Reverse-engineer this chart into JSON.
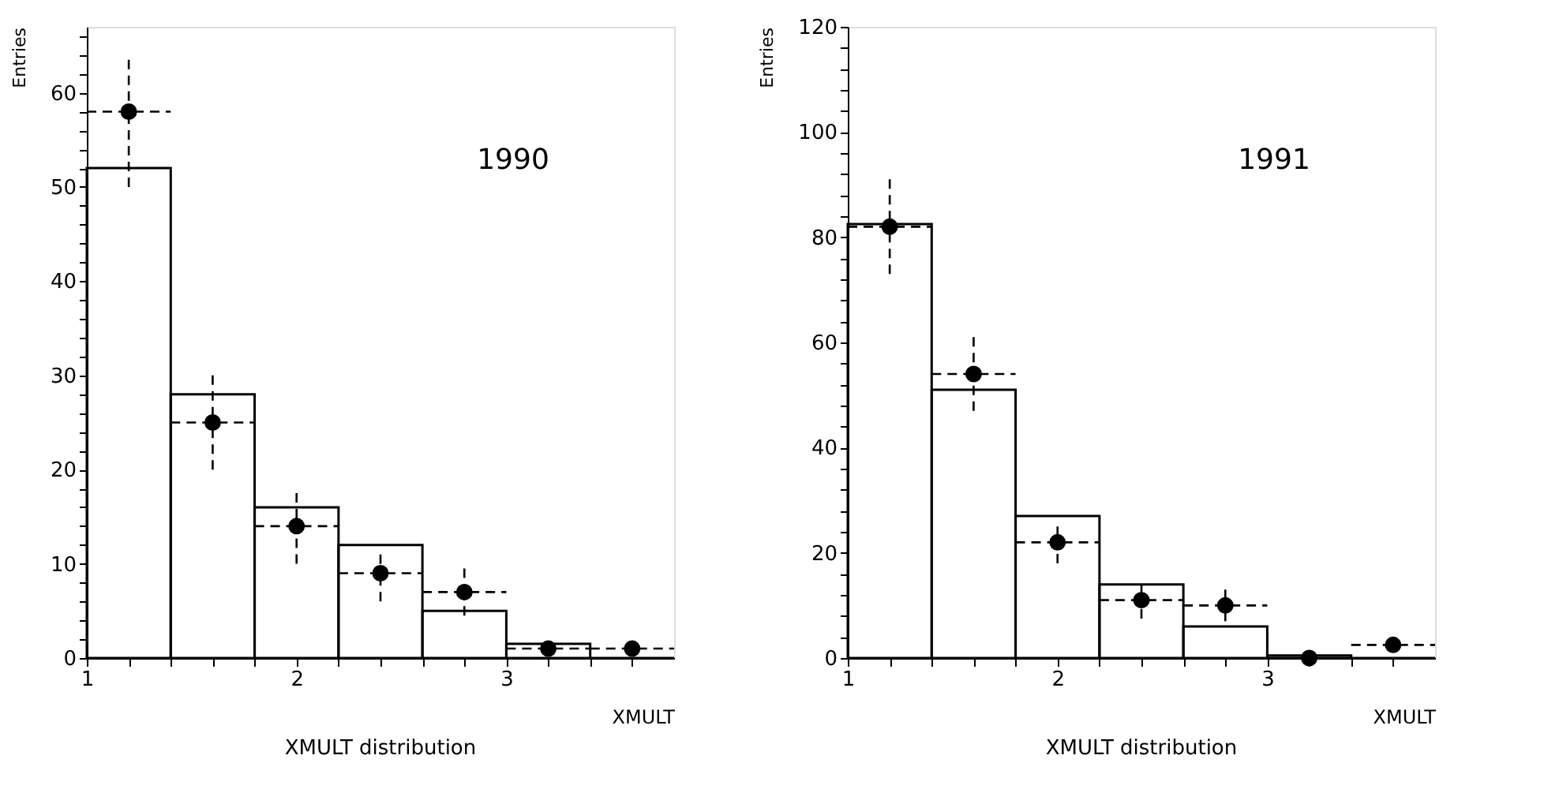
{
  "chart_data": [
    {
      "type": "histogram",
      "title": "XMULT distribution",
      "xlabel": "XMULT",
      "ylabel": "Entries",
      "annotations": [
        "1990"
      ],
      "bins": [
        1.0,
        1.4,
        1.8,
        2.2,
        2.6,
        3.0,
        3.4,
        3.8
      ],
      "values": [
        52,
        28,
        16,
        12,
        5,
        1.5,
        0
      ],
      "color": "#000000",
      "series": [
        {
          "type": "scatter",
          "color": "#000000",
          "marker": "circle",
          "x": [
            1.2,
            1.6,
            2.0,
            2.4,
            2.8,
            3.2,
            3.6
          ],
          "values": [
            58,
            25,
            14,
            9,
            7,
            1,
            1
          ],
          "errors": [
            [
              50,
              63.5
            ],
            [
              20,
              30
            ],
            [
              10,
              17.5
            ],
            [
              6,
              11
            ],
            [
              4.5,
              9.5
            ],
            null,
            null
          ],
          "xerrors": [
            0.2,
            0.2,
            0.2,
            0.2,
            0.2,
            0.2,
            0.2
          ]
        }
      ],
      "xlim": [
        1,
        3.8
      ],
      "ylim": [
        0,
        67
      ],
      "xticks": [
        1,
        {
          "value": 1.2,
          "label": null
        },
        {
          "value": 1.4,
          "label": null
        },
        {
          "value": 1.6,
          "label": null
        },
        {
          "value": 1.8,
          "label": null
        },
        2,
        {
          "value": 2.2,
          "label": null
        },
        {
          "value": 2.4,
          "label": null
        },
        {
          "value": 2.6,
          "label": null
        },
        {
          "value": 2.8,
          "label": null
        },
        3,
        {
          "value": 3.2,
          "label": null
        },
        {
          "value": 3.4,
          "label": null
        },
        {
          "value": 3.6,
          "label": null
        }
      ],
      "yticks": [
        0,
        {
          "value": 2,
          "label": null
        },
        {
          "value": 4,
          "label": null
        },
        {
          "value": 6,
          "label": null
        },
        {
          "value": 8,
          "label": null
        },
        10,
        {
          "value": 12,
          "label": null
        },
        {
          "value": 14,
          "label": null
        },
        {
          "value": 16,
          "label": null
        },
        {
          "value": 18,
          "label": null
        },
        20,
        {
          "value": 22,
          "label": null
        },
        {
          "value": 24,
          "label": null
        },
        {
          "value": 26,
          "label": null
        },
        {
          "value": 28,
          "label": null
        },
        30,
        {
          "value": 32,
          "label": null
        },
        {
          "value": 34,
          "label": null
        },
        {
          "value": 36,
          "label": null
        },
        {
          "value": 38,
          "label": null
        },
        40,
        {
          "value": 42,
          "label": null
        },
        {
          "value": 44,
          "label": null
        },
        {
          "value": 46,
          "label": null
        },
        {
          "value": 48,
          "label": null
        },
        50,
        {
          "value": 52,
          "label": null
        },
        {
          "value": 54,
          "label": null
        },
        {
          "value": 56,
          "label": null
        },
        {
          "value": 58,
          "label": null
        },
        60,
        {
          "value": 62,
          "label": null
        },
        {
          "value": 64,
          "label": null
        },
        {
          "value": 66,
          "label": null
        }
      ],
      "grid": false
    },
    {
      "type": "histogram",
      "title": "XMULT distribution",
      "xlabel": "XMULT",
      "ylabel": "Entries",
      "annotations": [
        "1991"
      ],
      "bins": [
        1.0,
        1.4,
        1.8,
        2.2,
        2.6,
        3.0,
        3.4,
        3.8
      ],
      "values": [
        82.5,
        51,
        27,
        14,
        6,
        0.5,
        0
      ],
      "color": "#000000",
      "series": [
        {
          "type": "scatter",
          "color": "#000000",
          "marker": "circle",
          "x": [
            1.2,
            1.6,
            2.0,
            2.4,
            2.8,
            3.2,
            3.6
          ],
          "values": [
            82,
            54,
            22,
            11,
            10,
            0,
            2.5
          ],
          "errors": [
            [
              73,
              91
            ],
            [
              47,
              61
            ],
            [
              18,
              25
            ],
            [
              7.5,
              14
            ],
            [
              7,
              13
            ],
            null,
            null
          ],
          "xerrors": [
            0.2,
            0.2,
            0.2,
            0.2,
            0.2,
            null,
            0.2
          ]
        }
      ],
      "xlim": [
        1,
        3.8
      ],
      "ylim": [
        0,
        120
      ],
      "xticks": [
        1,
        {
          "value": 1.2,
          "label": null
        },
        {
          "value": 1.4,
          "label": null
        },
        {
          "value": 1.6,
          "label": null
        },
        {
          "value": 1.8,
          "label": null
        },
        2,
        {
          "value": 2.2,
          "label": null
        },
        {
          "value": 2.4,
          "label": null
        },
        {
          "value": 2.6,
          "label": null
        },
        {
          "value": 2.8,
          "label": null
        },
        3,
        {
          "value": 3.2,
          "label": null
        },
        {
          "value": 3.4,
          "label": null
        },
        {
          "value": 3.6,
          "label": null
        }
      ],
      "yticks": [
        0,
        {
          "value": 4,
          "label": null
        },
        {
          "value": 8,
          "label": null
        },
        {
          "value": 12,
          "label": null
        },
        {
          "value": 16,
          "label": null
        },
        20,
        {
          "value": 24,
          "label": null
        },
        {
          "value": 28,
          "label": null
        },
        {
          "value": 32,
          "label": null
        },
        {
          "value": 36,
          "label": null
        },
        40,
        {
          "value": 44,
          "label": null
        },
        {
          "value": 48,
          "label": null
        },
        {
          "value": 52,
          "label": null
        },
        {
          "value": 56,
          "label": null
        },
        60,
        {
          "value": 64,
          "label": null
        },
        {
          "value": 68,
          "label": null
        },
        {
          "value": 72,
          "label": null
        },
        {
          "value": 76,
          "label": null
        },
        80,
        {
          "value": 84,
          "label": null
        },
        {
          "value": 88,
          "label": null
        },
        {
          "value": 92,
          "label": null
        },
        {
          "value": 96,
          "label": null
        },
        100,
        {
          "value": 104,
          "label": null
        },
        {
          "value": 108,
          "label": null
        },
        {
          "value": 112,
          "label": null
        },
        {
          "value": 116,
          "label": null
        },
        120
      ],
      "grid": false
    }
  ]
}
